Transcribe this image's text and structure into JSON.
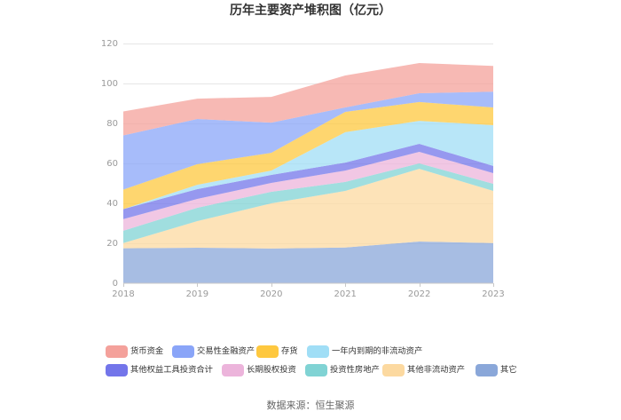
{
  "chart_data": {
    "type": "area",
    "stacked": true,
    "title": "历年主要资产堆积图（亿元）",
    "xlabel": "",
    "ylabel": "",
    "categories": [
      "2018",
      "2019",
      "2020",
      "2021",
      "2022",
      "2023"
    ],
    "ylim": [
      0,
      120
    ],
    "yticks": [
      0,
      20,
      40,
      60,
      80,
      100,
      120
    ],
    "grid": true,
    "legend_position": "bottom",
    "series": [
      {
        "name": "货币资金",
        "color": "#f4a19b",
        "values": [
          12.0,
          10.2,
          12.9,
          16.0,
          15.1,
          12.9
        ]
      },
      {
        "name": "交易性金融资产",
        "color": "#8aa5f8",
        "values": [
          27.1,
          22.6,
          15.1,
          2.2,
          4.4,
          7.9
        ]
      },
      {
        "name": "存货",
        "color": "#fec83f",
        "values": [
          9.8,
          10.3,
          8.9,
          10.2,
          9.4,
          8.9
        ]
      },
      {
        "name": "一年内到期的非流动资产",
        "color": "#a0def6",
        "values": [
          0.0,
          2.2,
          2.2,
          15.2,
          11.5,
          20.4
        ]
      },
      {
        "name": "其他权益工具投资合计",
        "color": "#7375ea",
        "values": [
          5.0,
          4.9,
          4.0,
          4.0,
          4.0,
          3.6
        ]
      },
      {
        "name": "长期股权投资",
        "color": "#ecb4db",
        "values": [
          5.8,
          4.4,
          4.4,
          5.7,
          5.8,
          5.3
        ]
      },
      {
        "name": "投资性房地产",
        "color": "#80d3d4",
        "values": [
          6.2,
          6.7,
          5.8,
          4.5,
          2.7,
          3.6
        ]
      },
      {
        "name": "其他非流动资产",
        "color": "#fcd9a0",
        "values": [
          2.6,
          13.3,
          22.6,
          28.3,
          36.4,
          26.1
        ]
      },
      {
        "name": "其它",
        "color": "#8aa7d9",
        "values": [
          17.5,
          17.8,
          17.4,
          17.9,
          20.9,
          20.1
        ]
      }
    ]
  },
  "footer": {
    "source": "数据来源：恒生聚源"
  }
}
